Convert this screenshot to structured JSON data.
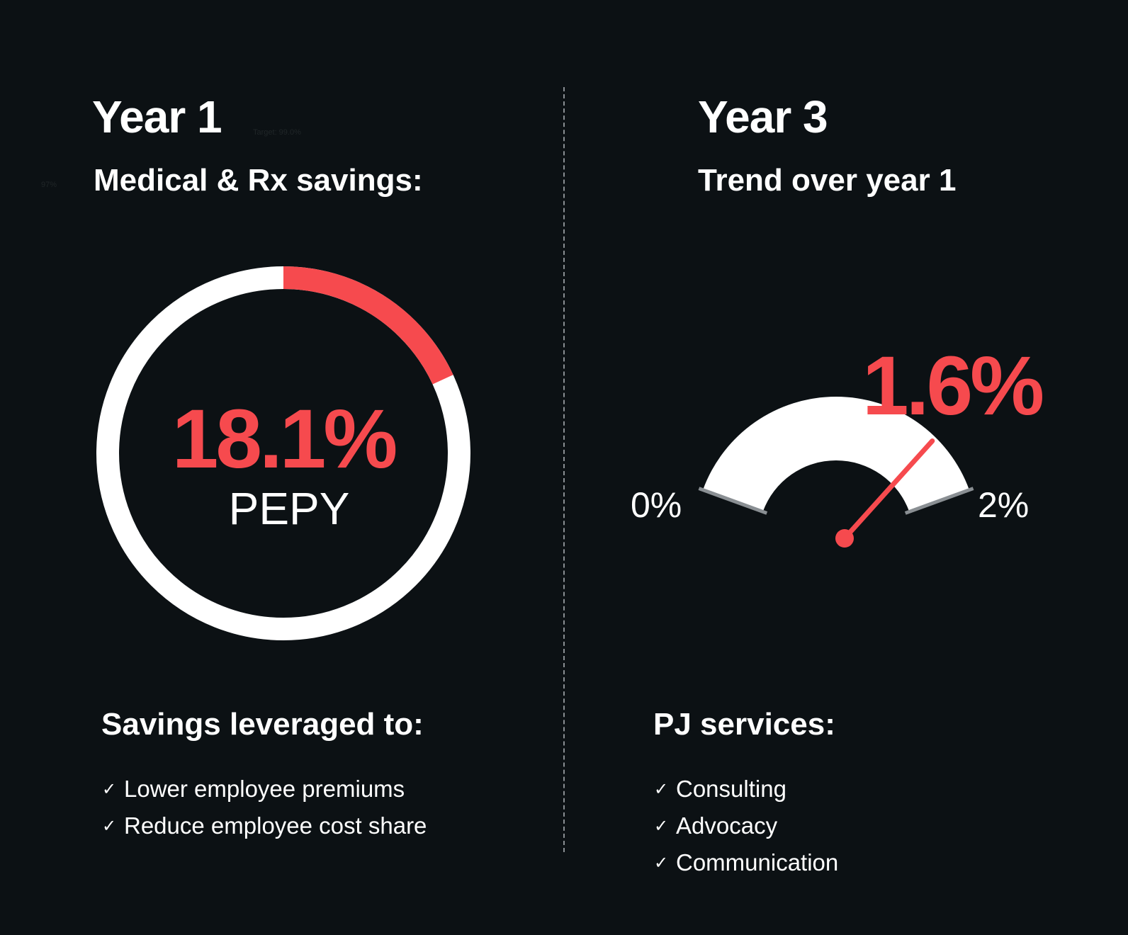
{
  "left": {
    "title": "Year 1",
    "subtitle": "Medical & Rx savings:",
    "stray_target": "Target: 99.0%",
    "stray_left": "97%",
    "section_title": "Savings leveraged to:",
    "items": [
      "Lower employee premiums",
      "Reduce employee cost share"
    ]
  },
  "right": {
    "title": "Year 3",
    "subtitle": "Trend over year 1",
    "section_title": "PJ services:",
    "items": [
      "Consulting",
      "Advocacy",
      "Communication"
    ]
  },
  "icons": {
    "check": "checkmark-icon"
  },
  "colors": {
    "accent": "#f64a4e",
    "ring": "#ffffff",
    "background": "#0c1114",
    "tick": "#8a8f93"
  },
  "chart_data": [
    {
      "type": "pie",
      "variant": "donut",
      "value": 18.1,
      "max": 100,
      "value_label": "18.1%",
      "unit_label": "PEPY"
    },
    {
      "type": "gauge",
      "value": 1.6,
      "min": 0,
      "max": 2,
      "value_label": "1.6%",
      "min_label": "0%",
      "max_label": "2%"
    }
  ]
}
